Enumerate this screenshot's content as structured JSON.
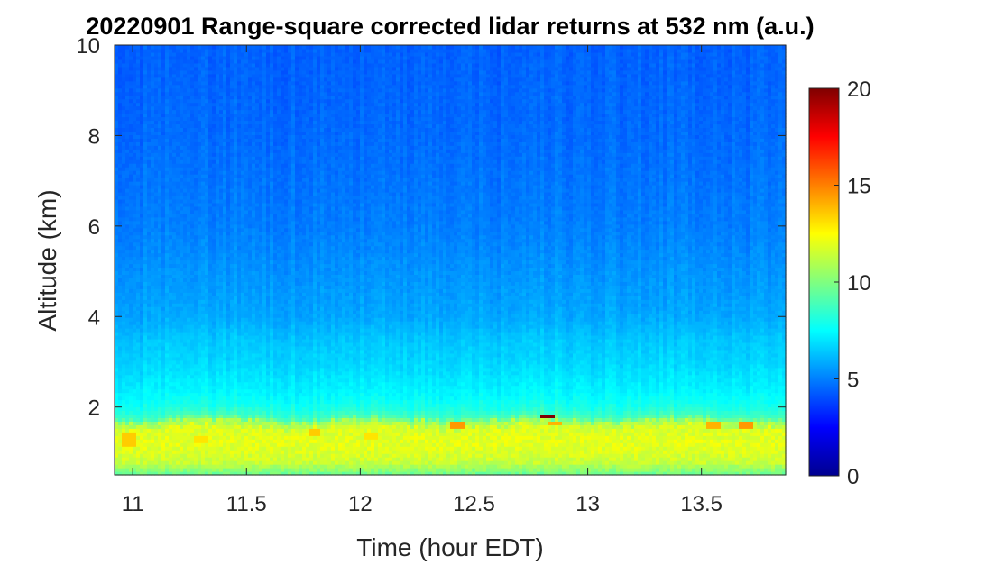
{
  "chart_data": {
    "type": "heatmap",
    "title": "20220901  Range-square corrected lidar returns at 532 nm (a.u.)",
    "xlabel": "Time (hour EDT)",
    "ylabel": "Altitude (km)",
    "xlim": [
      10.92,
      13.87
    ],
    "ylim": [
      0.5,
      10
    ],
    "x_ticks": [
      11,
      11.5,
      12,
      12.5,
      13,
      13.5
    ],
    "x_tick_labels": [
      "11",
      "11.5",
      "12",
      "12.5",
      "13",
      "13.5"
    ],
    "y_ticks": [
      2,
      4,
      6,
      8,
      10
    ],
    "y_tick_labels": [
      "2",
      "4",
      "6",
      "8",
      "10"
    ],
    "colorbar": {
      "colormap": "jet",
      "clim": [
        0,
        20
      ],
      "ticks": [
        0,
        5,
        10,
        15,
        20
      ],
      "tick_labels": [
        "0",
        "5",
        "10",
        "15",
        "20"
      ]
    },
    "altitude_profile_km": [
      0.5,
      0.8,
      1.2,
      1.5,
      1.65,
      1.8,
      2.0,
      2.3,
      2.7,
      3.0,
      3.5,
      4.0,
      5.0,
      6.0,
      7.0,
      8.0,
      9.0,
      10.0
    ],
    "typical_value_profile": [
      9.5,
      11.5,
      12.0,
      11.8,
      11.0,
      8.8,
      8.0,
      7.4,
      7.0,
      6.7,
      6.4,
      5.8,
      5.4,
      5.0,
      4.8,
      4.6,
      4.5,
      4.4
    ],
    "aerosol_layer_top_km": 1.7,
    "aerosol_layer_value": 12,
    "free_troposphere_value": 4.5,
    "notable_features": [
      {
        "time": 10.98,
        "alt_min": 1.1,
        "alt_max": 1.45,
        "value": 13.5
      },
      {
        "time": 11.3,
        "alt_min": 1.2,
        "alt_max": 1.35,
        "value": 13.0
      },
      {
        "time": 11.8,
        "alt_min": 1.4,
        "alt_max": 1.55,
        "value": 13.5
      },
      {
        "time": 12.05,
        "alt_min": 1.3,
        "alt_max": 1.45,
        "value": 13.0
      },
      {
        "time": 12.43,
        "alt_min": 1.5,
        "alt_max": 1.65,
        "value": 14.5
      },
      {
        "time": 12.82,
        "alt_min": 1.75,
        "alt_max": 1.85,
        "value": 20.0
      },
      {
        "time": 12.85,
        "alt_min": 1.6,
        "alt_max": 1.72,
        "value": 14.0
      },
      {
        "time": 13.55,
        "alt_min": 1.5,
        "alt_max": 1.65,
        "value": 14.0
      },
      {
        "time": 13.7,
        "alt_min": 1.55,
        "alt_max": 1.65,
        "value": 14.5
      }
    ]
  }
}
